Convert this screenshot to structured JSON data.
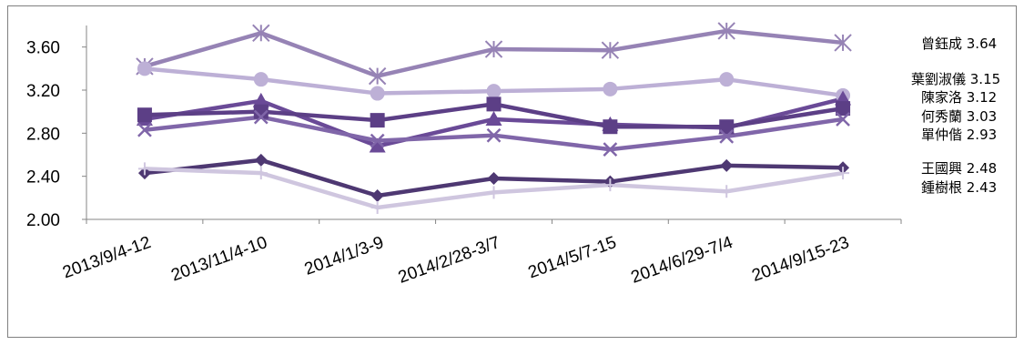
{
  "chart_data": {
    "type": "line",
    "title": "",
    "xlabel": "",
    "ylabel": "",
    "ylim": [
      2.0,
      3.8
    ],
    "yticks": [
      "2.00",
      "2.40",
      "2.80",
      "3.20",
      "3.60"
    ],
    "categories": [
      "2013/9/4-12",
      "2013/11/4-10",
      "2014/1/3-9",
      "2014/2/28-3/7",
      "2014/5/7-15",
      "2014/6/29-7/4",
      "2014/9/15-23"
    ],
    "grid": false,
    "legend": "end-labels",
    "series": [
      {
        "name": "曾鈺成",
        "end_label": "3.64",
        "color": "#9683b5",
        "marker": "asterisk",
        "values": [
          3.42,
          3.73,
          3.33,
          3.58,
          3.57,
          3.75,
          3.64
        ]
      },
      {
        "name": "葉劉淑儀",
        "end_label": "3.15",
        "color": "#bdb0d6",
        "marker": "circle",
        "values": [
          3.4,
          3.3,
          3.17,
          3.19,
          3.21,
          3.3,
          3.15
        ]
      },
      {
        "name": "陳家洛",
        "end_label": "3.12",
        "color": "#6a4a97",
        "marker": "triangle",
        "values": [
          2.93,
          3.1,
          2.68,
          2.93,
          2.88,
          2.85,
          3.12
        ]
      },
      {
        "name": "何秀蘭",
        "end_label": "3.03",
        "color": "#5c3f86",
        "marker": "square",
        "values": [
          2.97,
          3.0,
          2.92,
          3.07,
          2.86,
          2.86,
          3.03
        ]
      },
      {
        "name": "單仲偕",
        "end_label": "2.93",
        "color": "#8066a9",
        "marker": "x",
        "values": [
          2.83,
          2.95,
          2.73,
          2.78,
          2.65,
          2.77,
          2.93
        ]
      },
      {
        "name": "王國興",
        "end_label": "2.48",
        "color": "#4e3872",
        "marker": "diamond",
        "values": [
          2.43,
          2.55,
          2.22,
          2.38,
          2.35,
          2.5,
          2.48
        ]
      },
      {
        "name": "鍾樹根",
        "end_label": "2.43",
        "color": "#cfc6df",
        "marker": "plus",
        "values": [
          2.47,
          2.43,
          2.11,
          2.25,
          2.32,
          2.26,
          2.43
        ]
      }
    ]
  }
}
